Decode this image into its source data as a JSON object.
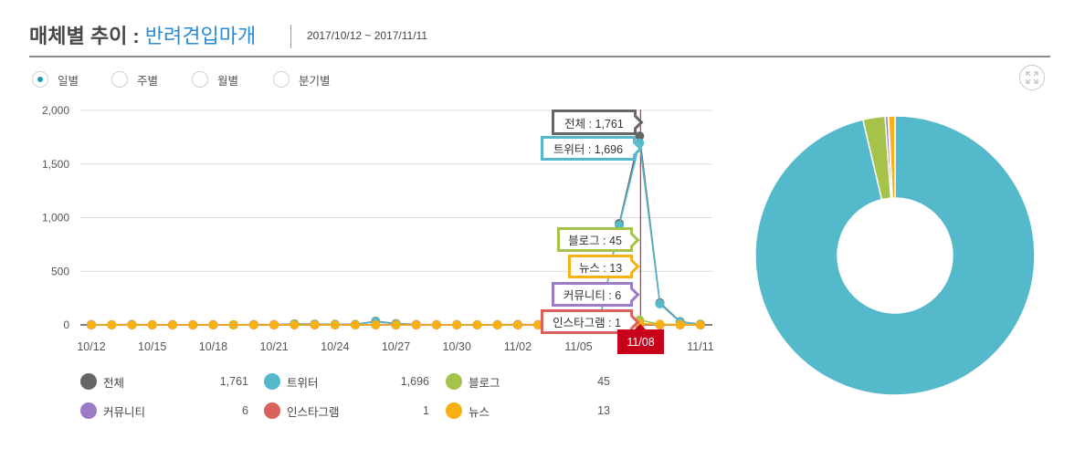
{
  "header": {
    "title_prefix": "매체별 추이 :",
    "keyword": "반려견입마개",
    "date_range": "2017/10/12 ~ 2017/11/11"
  },
  "period_options": [
    {
      "label": "일별",
      "selected": true
    },
    {
      "label": "주별",
      "selected": false
    },
    {
      "label": "월별",
      "selected": false
    },
    {
      "label": "분기별",
      "selected": false
    }
  ],
  "expand_button": {
    "icon": "expand-icon"
  },
  "selected_date": "11/08",
  "tooltips": [
    {
      "text": "전체 : 1,761",
      "color": "#666666"
    },
    {
      "text": "트위터 : 1,696",
      "color": "#55b9cc"
    },
    {
      "text": "블로그 : 45",
      "color": "#a5c24a"
    },
    {
      "text": "뉴스 : 13",
      "color": "#f8b115"
    },
    {
      "text": "커뮤니티 : 6",
      "color": "#9b7ac6"
    },
    {
      "text": "인스타그램 : 1",
      "color": "#d9625c"
    }
  ],
  "legend": [
    {
      "label": "전체",
      "value": "1,761",
      "color": "#666666"
    },
    {
      "label": "트위터",
      "value": "1,696",
      "color": "#55b9cc"
    },
    {
      "label": "블로그",
      "value": "45",
      "color": "#a5c24a"
    },
    {
      "label": "커뮤니티",
      "value": "6",
      "color": "#9b7ac6"
    },
    {
      "label": "인스타그램",
      "value": "1",
      "color": "#d9625c"
    },
    {
      "label": "뉴스",
      "value": "13",
      "color": "#f8b115"
    }
  ],
  "chart_data": [
    {
      "type": "line",
      "title": "매체별 추이",
      "xlabel": "",
      "ylabel": "",
      "ylim": [
        0,
        2000
      ],
      "yticks": [
        0,
        500,
        1000,
        1500,
        2000
      ],
      "ytick_labels": [
        "0",
        "500",
        "1,000",
        "1,500",
        "2,000"
      ],
      "grid": true,
      "x": [
        "10/12",
        "10/13",
        "10/14",
        "10/15",
        "10/16",
        "10/17",
        "10/18",
        "10/19",
        "10/20",
        "10/21",
        "10/22",
        "10/23",
        "10/24",
        "10/25",
        "10/26",
        "10/27",
        "10/28",
        "10/29",
        "10/30",
        "10/31",
        "11/01",
        "11/02",
        "11/03",
        "11/04",
        "11/05",
        "11/06",
        "11/07",
        "11/08",
        "11/09",
        "11/10",
        "11/11"
      ],
      "xtick_labels": [
        "10/12",
        "10/15",
        "10/18",
        "10/21",
        "10/24",
        "10/27",
        "10/30",
        "11/02",
        "11/05",
        "11/08",
        "11/11"
      ],
      "highlight_x": "11/08",
      "series": [
        {
          "name": "전체",
          "color": "#666666",
          "values": [
            2,
            1,
            3,
            1,
            2,
            1,
            2,
            1,
            3,
            2,
            9,
            7,
            5,
            4,
            34,
            12,
            3,
            2,
            2,
            1,
            2,
            3,
            2,
            3,
            5,
            8,
            945,
            1761,
            205,
            30,
            6
          ]
        },
        {
          "name": "트위터",
          "color": "#55b9cc",
          "values": [
            1,
            0,
            2,
            0,
            1,
            0,
            1,
            0,
            2,
            1,
            6,
            6,
            4,
            3,
            30,
            10,
            2,
            1,
            1,
            0,
            1,
            2,
            1,
            2,
            4,
            6,
            930,
            1696,
            196,
            25,
            4
          ]
        },
        {
          "name": "블로그",
          "color": "#a5c24a",
          "values": [
            1,
            1,
            1,
            1,
            1,
            1,
            1,
            1,
            1,
            1,
            3,
            1,
            1,
            1,
            4,
            2,
            1,
            1,
            1,
            1,
            1,
            1,
            1,
            1,
            1,
            2,
            12,
            45,
            6,
            4,
            2
          ]
        },
        {
          "name": "커뮤니티",
          "color": "#9b7ac6",
          "values": [
            0,
            0,
            0,
            0,
            0,
            0,
            0,
            0,
            0,
            0,
            0,
            0,
            0,
            0,
            0,
            0,
            0,
            0,
            0,
            0,
            0,
            0,
            0,
            0,
            0,
            0,
            1,
            6,
            0,
            0,
            0
          ]
        },
        {
          "name": "인스타그램",
          "color": "#d9625c",
          "values": [
            0,
            0,
            0,
            0,
            0,
            0,
            0,
            0,
            0,
            0,
            0,
            0,
            0,
            0,
            0,
            0,
            0,
            0,
            0,
            0,
            0,
            0,
            0,
            0,
            0,
            0,
            0,
            1,
            0,
            0,
            0
          ]
        },
        {
          "name": "뉴스",
          "color": "#f8b115",
          "values": [
            0,
            0,
            0,
            0,
            0,
            0,
            0,
            0,
            0,
            0,
            0,
            0,
            0,
            0,
            0,
            0,
            0,
            0,
            0,
            0,
            0,
            0,
            0,
            0,
            0,
            0,
            2,
            13,
            3,
            1,
            0
          ]
        }
      ],
      "legend_position": "bottom"
    },
    {
      "type": "pie",
      "donut": true,
      "title": "",
      "labels": [
        "트위터",
        "블로그",
        "커뮤니티",
        "인스타그램",
        "뉴스"
      ],
      "values": [
        1696,
        45,
        6,
        1,
        13
      ],
      "colors": [
        "#55b9cc",
        "#a5c24a",
        "#9b7ac6",
        "#d9625c",
        "#f8b115"
      ],
      "start_angle": "top",
      "direction": "clockwise"
    }
  ]
}
